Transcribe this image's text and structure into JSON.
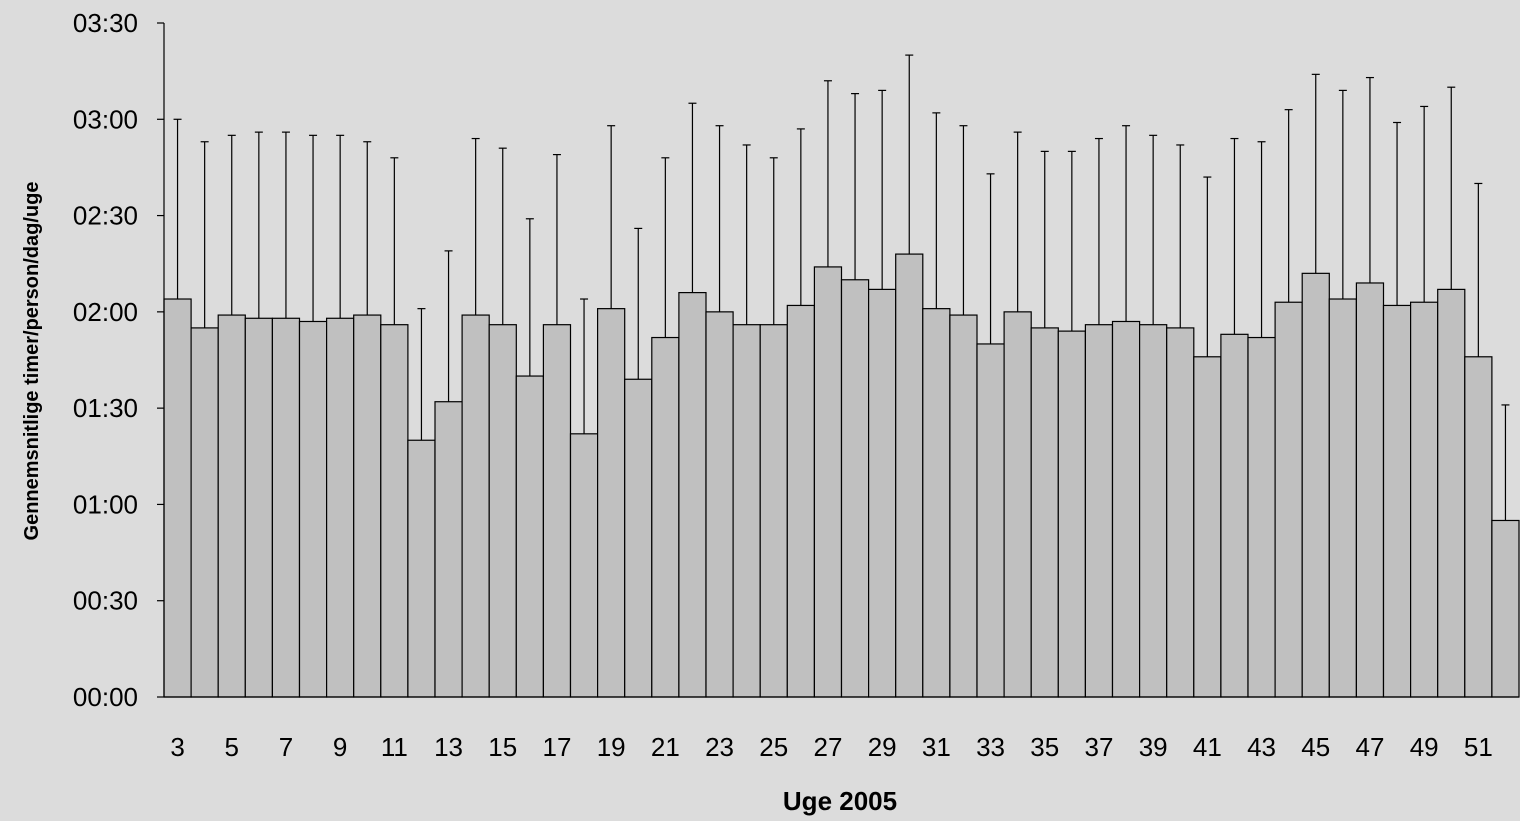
{
  "chart_data": {
    "type": "bar",
    "xlabel": "Uge 2005",
    "ylabel": "Gennemsnitlige timer/person/dag/uge",
    "y_unit": "minutes",
    "ylim": [
      0,
      210
    ],
    "ytick_values": [
      0,
      30,
      60,
      90,
      120,
      150,
      180,
      210
    ],
    "ytick_labels": [
      "00:00",
      "00:30",
      "01:00",
      "01:30",
      "02:00",
      "02:30",
      "03:00",
      "03:30"
    ],
    "categories": [
      3,
      4,
      5,
      6,
      7,
      8,
      9,
      10,
      11,
      12,
      13,
      14,
      15,
      16,
      17,
      18,
      19,
      20,
      21,
      22,
      23,
      24,
      25,
      26,
      27,
      28,
      29,
      30,
      31,
      32,
      33,
      34,
      35,
      36,
      37,
      38,
      39,
      40,
      41,
      42,
      43,
      44,
      45,
      46,
      47,
      48,
      49,
      50,
      51,
      52
    ],
    "xtick_labels": [
      "3",
      "5",
      "7",
      "9",
      "11",
      "13",
      "15",
      "17",
      "19",
      "21",
      "23",
      "25",
      "27",
      "29",
      "31",
      "33",
      "35",
      "37",
      "39",
      "41",
      "43",
      "45",
      "47",
      "49",
      "51"
    ],
    "values": [
      124,
      115,
      119,
      118,
      118,
      117,
      118,
      119,
      116,
      80,
      92,
      119,
      116,
      100,
      116,
      82,
      121,
      99,
      112,
      126,
      120,
      116,
      116,
      122,
      134,
      130,
      127,
      138,
      121,
      119,
      110,
      120,
      115,
      114,
      116,
      117,
      116,
      115,
      106,
      113,
      112,
      123,
      132,
      124,
      129,
      122,
      123,
      127,
      106,
      55
    ],
    "error_upper": [
      180,
      173,
      175,
      176,
      176,
      175,
      175,
      173,
      168,
      121,
      139,
      174,
      171,
      149,
      169,
      124,
      178,
      146,
      168,
      185,
      178,
      172,
      168,
      177,
      192,
      188,
      189,
      200,
      182,
      178,
      163,
      176,
      170,
      170,
      174,
      178,
      175,
      172,
      162,
      174,
      173,
      183,
      194,
      189,
      193,
      179,
      184,
      190,
      160,
      91
    ],
    "bar_color": "#c0c0c0",
    "grid": false
  }
}
